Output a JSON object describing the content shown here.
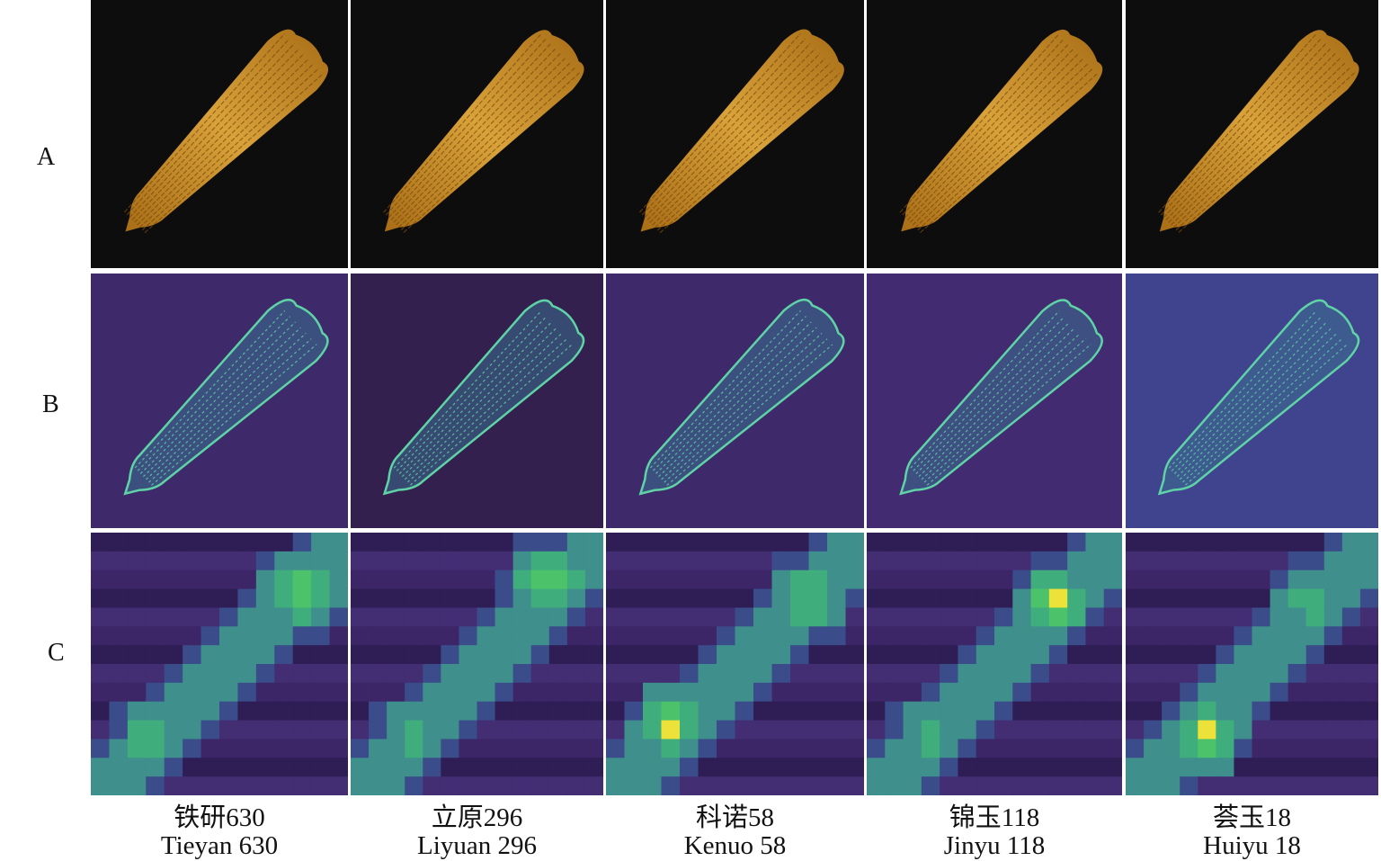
{
  "rows": [
    {
      "label": "A",
      "panel": "photo"
    },
    {
      "label": "B",
      "panel": "edge-map"
    },
    {
      "label": "C",
      "panel": "activation-heatmap"
    }
  ],
  "varieties": [
    {
      "name_cn": "铁研630",
      "name_en": "Tieyan 630",
      "b_bg": "#3e2a6b"
    },
    {
      "name_cn": "立原296",
      "name_en": "Liyuan 296",
      "b_bg": "#33204f"
    },
    {
      "name_cn": "科诺58",
      "name_en": "Kenuo 58",
      "b_bg": "#3e2a6b"
    },
    {
      "name_cn": "锦玉118",
      "name_en": "Jinyu 118",
      "b_bg": "#422b70"
    },
    {
      "name_cn": "荟玉18",
      "name_en": "Huiyu 18",
      "b_bg": "#40438e"
    }
  ],
  "colors": {
    "photo_bg": "#0d0d0d",
    "kernel": "#d9a23a",
    "kernel_dark": "#a86d16",
    "edge": "#5fd3a6",
    "heat_bg": "#3d2667",
    "heat_mid": "#3f8f8c",
    "heat_high": "#4cc36a",
    "heat_peak": "#ece23a"
  }
}
